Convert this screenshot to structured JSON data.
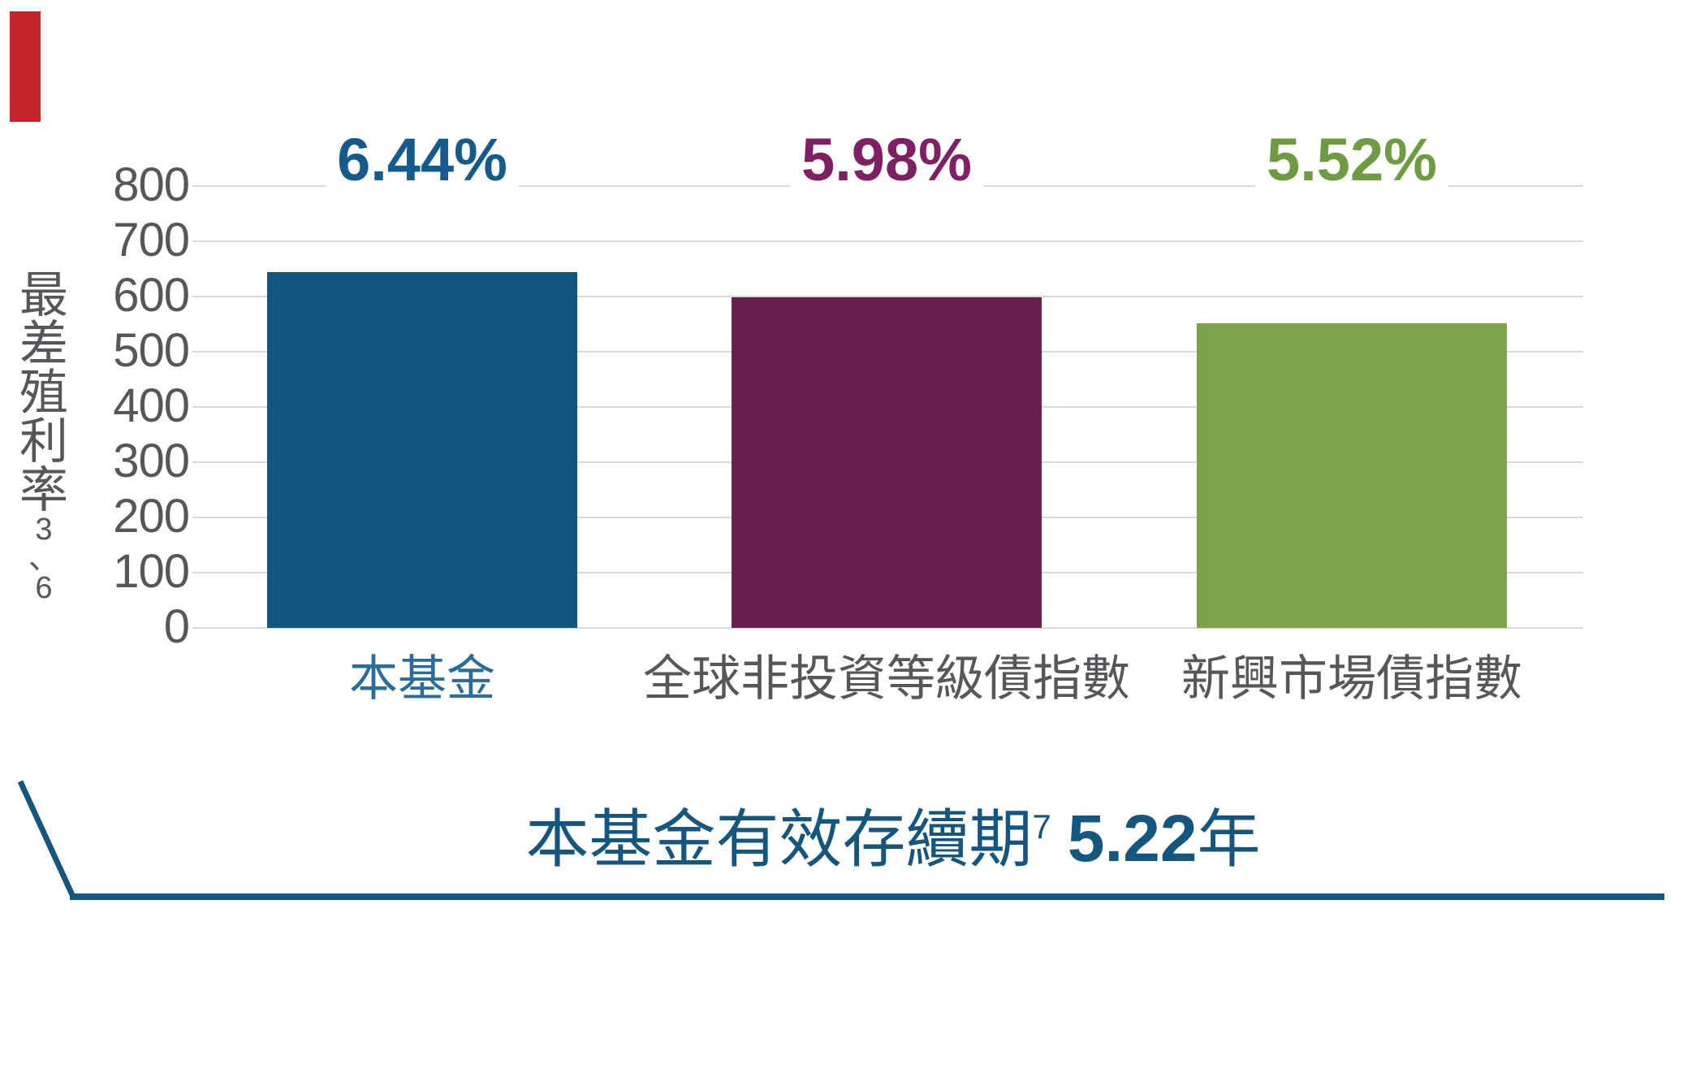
{
  "page": {
    "background_color": "#ffffff",
    "corner_accent_color": "#c2252b"
  },
  "chart_data": {
    "type": "bar",
    "title": "",
    "ylabel": "最差殖利率",
    "ylabel_footnote": "3、6",
    "ylim": [
      0,
      800
    ],
    "yticks": [
      800,
      700,
      600,
      500,
      400,
      300,
      200,
      100,
      0
    ],
    "grid": true,
    "legend": false,
    "categories": [
      "本基金",
      "全球非投資等級債指數",
      "新興市場債指數"
    ],
    "values": [
      644,
      598,
      552
    ],
    "data_labels": [
      "6.44%",
      "5.98%",
      "5.52%"
    ],
    "bar_colors": [
      "#10567e",
      "#681f4f",
      "#7ca24a"
    ],
    "data_label_colors": [
      "#155a8c",
      "#7e2063",
      "#6f9c42"
    ],
    "category_colors": [
      "#2b6d9a",
      "#55575a",
      "#55575a"
    ],
    "tick_color": "#55575a",
    "gridline_color": "#d9d9d9"
  },
  "footer": {
    "duration_label": "本基金有效存續期",
    "duration_footnote": "7",
    "duration_value": "5.22",
    "duration_unit": "年",
    "accent_color": "#14567e"
  }
}
